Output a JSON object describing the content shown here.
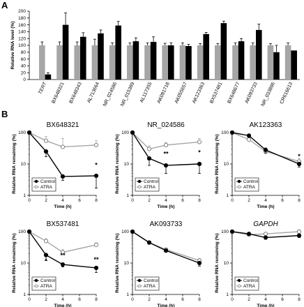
{
  "panel_a_label": "A",
  "panel_b_label": "B",
  "chart_data": [
    {
      "type": "bar",
      "panel": "A",
      "ylabel": "Relative RNA level (%)",
      "ylim": [
        0,
        200
      ],
      "yticks": [
        "0",
        "20",
        "40",
        "60",
        "80",
        "100",
        "120",
        "140",
        "160",
        "180",
        "200"
      ],
      "categories": [
        "TERT",
        "BX648321",
        "BX648343",
        "AL713664",
        "NR_024586",
        "NR_015389",
        "AL117355",
        "AK091718",
        "AK055657",
        "AK123363",
        "BX537481",
        "BX648677",
        "AK093733",
        "NR_033896",
        "CR616613"
      ],
      "italic_categories": [
        "TERT"
      ],
      "series": [
        {
          "color": "#a6a6a6",
          "values": [
            100,
            100,
            100,
            100,
            100,
            100,
            100,
            100,
            100,
            100,
            100,
            100,
            100,
            100,
            100
          ],
          "errors": [
            10,
            10,
            10,
            18,
            7,
            7,
            7,
            6,
            7,
            5,
            5,
            7,
            7,
            5,
            7
          ]
        },
        {
          "color": "#000000",
          "values": [
            15,
            160,
            125,
            135,
            158,
            112,
            110,
            100,
            98,
            133,
            165,
            112,
            145,
            80,
            85
          ],
          "errors": [
            5,
            35,
            12,
            10,
            12,
            10,
            15,
            7,
            5,
            5,
            6,
            8,
            17,
            20,
            0
          ]
        }
      ],
      "grid": false
    },
    {
      "type": "line",
      "panel": "B",
      "title": "BX648321",
      "xlabel": "Time (h)",
      "ylabel": "Relative RNA remaining (%)",
      "yscale": "log",
      "ylim": [
        1,
        100
      ],
      "x": [
        0,
        2,
        4,
        8
      ],
      "series": [
        {
          "name": "Control",
          "values": [
            100,
            25,
            4,
            4.2
          ],
          "errors": [
            0,
            8,
            1,
            2.5
          ],
          "marker": "filled"
        },
        {
          "name": "ATRA",
          "values": [
            100,
            55,
            35,
            40
          ],
          "errors": [
            0,
            20,
            30,
            15
          ],
          "marker": "open"
        }
      ],
      "annotations": [
        {
          "x": 8,
          "y": 8,
          "text": "*"
        }
      ],
      "legend": "bottom-left"
    },
    {
      "type": "line",
      "panel": "B",
      "title": "NR_024586",
      "xlabel": "Time (h)",
      "ylabel": "Relative RNA remaining (%)",
      "yscale": "log",
      "ylim": [
        1,
        100
      ],
      "x": [
        0,
        2,
        4,
        8
      ],
      "series": [
        {
          "name": "Control",
          "values": [
            100,
            15,
            9,
            10
          ],
          "errors": [
            0,
            6,
            4,
            5
          ],
          "marker": "filled"
        },
        {
          "name": "ATRA",
          "values": [
            100,
            30,
            40,
            50
          ],
          "errors": [
            0,
            8,
            8,
            15
          ],
          "marker": "open"
        }
      ],
      "annotations": [
        {
          "x": 4,
          "y": 18,
          "text": "**"
        },
        {
          "x": 8,
          "y": 20,
          "text": "*"
        }
      ],
      "legend": "bottom-left"
    },
    {
      "type": "line",
      "panel": "B",
      "title": "AK123363",
      "xlabel": "Time (h)",
      "ylabel": "Relative RNA remaining (%)",
      "yscale": "log",
      "ylim": [
        1,
        100
      ],
      "x": [
        0,
        2,
        4,
        8
      ],
      "series": [
        {
          "name": "Control",
          "values": [
            100,
            80,
            28,
            10
          ],
          "errors": [
            0,
            10,
            6,
            2
          ],
          "marker": "filled"
        },
        {
          "name": "ATRA",
          "values": [
            100,
            60,
            25,
            12
          ],
          "errors": [
            0,
            10,
            8,
            3
          ],
          "marker": "open"
        }
      ],
      "annotations": [
        {
          "x": 8,
          "y": 15,
          "text": "*"
        }
      ],
      "legend": "bottom-left"
    },
    {
      "type": "line",
      "panel": "B",
      "title": "BX537481",
      "xlabel": "Time (h)",
      "ylabel": "Relative RNA remaining (%)",
      "yscale": "log",
      "ylim": [
        1,
        100
      ],
      "x": [
        0,
        2,
        4,
        8
      ],
      "series": [
        {
          "name": "Control",
          "values": [
            100,
            18,
            9,
            7
          ],
          "errors": [
            0,
            6,
            1.5,
            2
          ],
          "marker": "filled"
        },
        {
          "name": "ATRA",
          "values": [
            100,
            50,
            22,
            38
          ],
          "errors": [
            0,
            10,
            5,
            6
          ],
          "marker": "open"
        }
      ],
      "annotations": [
        {
          "x": 2,
          "y": 10,
          "text": "*"
        },
        {
          "x": 4,
          "y": 15,
          "text": "**"
        },
        {
          "x": 8,
          "y": 11,
          "text": "**"
        }
      ],
      "legend": "bottom-left"
    },
    {
      "type": "line",
      "panel": "B",
      "title": "AK093733",
      "xlabel": "Time (h)",
      "ylabel": "Relative RNA remaining (%)",
      "yscale": "log",
      "ylim": [
        1,
        100
      ],
      "x": [
        0,
        2,
        4,
        8
      ],
      "series": [
        {
          "name": "Control",
          "values": [
            100,
            45,
            25,
            10
          ],
          "errors": [
            0,
            5,
            3,
            2
          ],
          "marker": "filled"
        },
        {
          "name": "ATRA",
          "values": [
            100,
            45,
            27,
            12
          ],
          "errors": [
            0,
            5,
            3,
            2
          ],
          "marker": "open"
        }
      ],
      "annotations": [],
      "legend": "bottom-left"
    },
    {
      "type": "line",
      "panel": "B",
      "title": "GAPDH",
      "title_italic": true,
      "xlabel": "Time (h)",
      "ylabel": "Relative RNA remaining (%)",
      "yscale": "log",
      "ylim": [
        1,
        100
      ],
      "x": [
        0,
        2,
        4,
        8
      ],
      "series": [
        {
          "name": "Control",
          "values": [
            100,
            85,
            65,
            75
          ],
          "errors": [
            0,
            8,
            8,
            10
          ],
          "marker": "filled"
        },
        {
          "name": "ATRA",
          "values": [
            100,
            80,
            85,
            100
          ],
          "errors": [
            0,
            10,
            10,
            15
          ],
          "marker": "open"
        }
      ],
      "annotations": [],
      "legend": "bottom-left"
    }
  ]
}
